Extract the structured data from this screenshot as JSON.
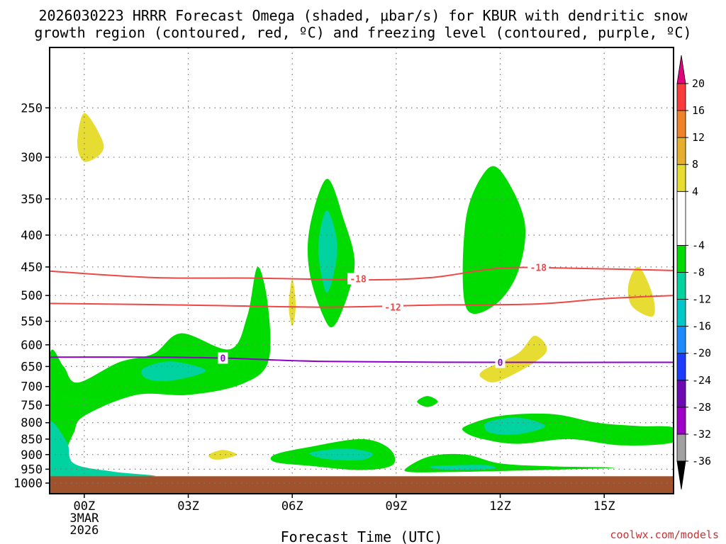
{
  "title_line1": "2026030223 HRRR Forecast Omega (shaded, μbar/s) for KBUR with dendritic snow",
  "title_line2": "growth region (contoured, red, ºC) and freezing level (contoured, purple, ºC)",
  "credit": "coolwx.com/models",
  "chart_data": {
    "type": "contour-cross-section",
    "xlabel": "Forecast Time (UTC)",
    "ylabel": "",
    "x_range_hours": [
      -1,
      17
    ],
    "y_range_hpa": [
      200,
      1040
    ],
    "x_ticks": [
      {
        "hour": 0,
        "label": "00Z"
      },
      {
        "hour": 3,
        "label": "03Z"
      },
      {
        "hour": 6,
        "label": "06Z"
      },
      {
        "hour": 9,
        "label": "09Z"
      },
      {
        "hour": 12,
        "label": "12Z"
      },
      {
        "hour": 15,
        "label": "15Z"
      }
    ],
    "date_label": [
      "3MAR",
      "2026"
    ],
    "y_ticks": [
      250,
      300,
      350,
      400,
      450,
      500,
      550,
      600,
      650,
      700,
      750,
      800,
      850,
      900,
      950,
      1000
    ],
    "surface_hpa": 975,
    "colorbar": {
      "unit": "μbar/s",
      "segments": [
        {
          "from": -40,
          "to": -36,
          "color": "#000000"
        },
        {
          "from": -36,
          "to": -32,
          "color": "#a0a0a0"
        },
        {
          "from": -32,
          "to": -28,
          "color": "#a000c8"
        },
        {
          "from": -28,
          "to": -24,
          "color": "#6e0ab4"
        },
        {
          "from": -24,
          "to": -20,
          "color": "#1e3cff"
        },
        {
          "from": -20,
          "to": -16,
          "color": "#1e8cff"
        },
        {
          "from": -16,
          "to": -12,
          "color": "#00c8c8"
        },
        {
          "from": -12,
          "to": -8,
          "color": "#00d2a0"
        },
        {
          "from": -8,
          "to": -4,
          "color": "#00dc00"
        },
        {
          "from": -4,
          "to": 4,
          "color": "#ffffff"
        },
        {
          "from": 4,
          "to": 8,
          "color": "#e6dc32"
        },
        {
          "from": 8,
          "to": 12,
          "color": "#e6af2d"
        },
        {
          "from": 12,
          "to": 16,
          "color": "#f08228"
        },
        {
          "from": 16,
          "to": 20,
          "color": "#fa3c3c"
        },
        {
          "from": 20,
          "to": 24,
          "color": "#e1057d"
        }
      ],
      "labels": [
        20,
        16,
        12,
        8,
        4,
        -4,
        -8,
        -12,
        -16,
        -20,
        -24,
        -28,
        -32,
        -36
      ]
    },
    "isotherms": [
      {
        "name": "minus-18-isotherm",
        "label": "-18",
        "color": "#f04646",
        "points": [
          [
            -1,
            457
          ],
          [
            2,
            468
          ],
          [
            5,
            469
          ],
          [
            8,
            472
          ],
          [
            10,
            468
          ],
          [
            12,
            452
          ],
          [
            14,
            452
          ],
          [
            17,
            456
          ]
        ],
        "label_positions": [
          [
            7.9,
            470
          ],
          [
            13.1,
            451
          ]
        ]
      },
      {
        "name": "minus-12-isotherm",
        "label": "-12",
        "color": "#f04646",
        "points": [
          [
            -1,
            515
          ],
          [
            3,
            518
          ],
          [
            7,
            522
          ],
          [
            10,
            518
          ],
          [
            13,
            516
          ],
          [
            15,
            506
          ],
          [
            17,
            500
          ]
        ],
        "label_positions": [
          [
            8.9,
            522
          ]
        ]
      },
      {
        "name": "zero-isotherm",
        "label": "0",
        "color": "#8c00c8",
        "points": [
          [
            -1,
            628
          ],
          [
            2,
            628
          ],
          [
            4,
            630
          ],
          [
            7,
            638
          ],
          [
            12,
            640
          ],
          [
            17,
            640
          ]
        ],
        "label_positions": [
          [
            4.0,
            630
          ],
          [
            12.0,
            640
          ]
        ]
      }
    ],
    "omega_regions": [
      {
        "name": "lowlevel-upward-motion",
        "value_bin": "-4 to -8",
        "color": "#00dc00",
        "points": [
          [
            -1,
            625
          ],
          [
            -0.6,
            650
          ],
          [
            -0.2,
            690
          ],
          [
            1,
            640
          ],
          [
            2,
            620
          ],
          [
            2.8,
            575
          ],
          [
            4.2,
            610
          ],
          [
            4.7,
            540
          ],
          [
            5,
            450
          ],
          [
            5.3,
            520
          ],
          [
            5.3,
            640
          ],
          [
            4.5,
            695
          ],
          [
            3,
            722
          ],
          [
            1.5,
            722
          ],
          [
            0,
            780
          ],
          [
            -0.3,
            830
          ],
          [
            -0.5,
            880
          ],
          [
            -0.6,
            920
          ],
          [
            -0.6,
            960
          ],
          [
            -1,
            960
          ]
        ]
      },
      {
        "name": "lowlevel-upward-motion-core",
        "value_bin": "-8 to -12",
        "color": "#00d2a0",
        "points": [
          [
            1.7,
            655
          ],
          [
            2.5,
            638
          ],
          [
            3.5,
            660
          ],
          [
            2.5,
            685
          ],
          [
            1.8,
            680
          ]
        ]
      },
      {
        "name": "nearsurface-upward-motion",
        "value_bin": "-8 to -12",
        "color": "#00d2a0",
        "points": [
          [
            -1,
            800
          ],
          [
            -0.5,
            860
          ],
          [
            -0.3,
            930
          ],
          [
            0.8,
            958
          ],
          [
            2,
            975
          ],
          [
            -1,
            975
          ]
        ]
      },
      {
        "name": "midlevel-upward-column-07z",
        "value_bin": "-4 to -8",
        "color": "#00dc00",
        "points": [
          [
            7,
            325
          ],
          [
            7.5,
            380
          ],
          [
            7.8,
            440
          ],
          [
            7.6,
            500
          ],
          [
            7.2,
            560
          ],
          [
            6.9,
            540
          ],
          [
            6.5,
            460
          ],
          [
            6.5,
            390
          ]
        ]
      },
      {
        "name": "midlevel-upward-column-07z-core",
        "value_bin": "-8 to -12",
        "color": "#00d2a0",
        "points": [
          [
            7,
            365
          ],
          [
            7.3,
            420
          ],
          [
            7,
            495
          ],
          [
            6.75,
            420
          ]
        ]
      },
      {
        "name": "lowlevel-upward-motion-08z",
        "value_bin": "-4 to -8",
        "color": "#00dc00",
        "points": [
          [
            5.5,
            900
          ],
          [
            6.5,
            875
          ],
          [
            8,
            850
          ],
          [
            8.8,
            880
          ],
          [
            8.9,
            935
          ],
          [
            8,
            953
          ],
          [
            6.5,
            938
          ],
          [
            5.5,
            925
          ]
        ]
      },
      {
        "name": "lowlevel-upward-motion-08z-core",
        "value_bin": "-8 to -12",
        "color": "#00d2a0",
        "points": [
          [
            6.5,
            895
          ],
          [
            7.5,
            880
          ],
          [
            8.3,
            895
          ],
          [
            8,
            918
          ],
          [
            7,
            915
          ]
        ]
      },
      {
        "name": "nearsurface-upward-motion-11z",
        "value_bin": "-4 to -8",
        "color": "#00dc00",
        "points": [
          [
            9.3,
            945
          ],
          [
            10,
            905
          ],
          [
            11,
            900
          ],
          [
            12,
            930
          ],
          [
            13.5,
            940
          ],
          [
            15.3,
            945
          ],
          [
            12.5,
            955
          ],
          [
            10.5,
            960
          ],
          [
            9.4,
            960
          ]
        ]
      },
      {
        "name": "nearsurface-upward-motion-11z-core",
        "value_bin": "-8 to -12",
        "color": "#00d2a0",
        "points": [
          [
            10,
            940
          ],
          [
            11.5,
            935
          ],
          [
            11.8,
            948
          ],
          [
            10.5,
            952
          ]
        ]
      },
      {
        "name": "midlevel-upward-column-12z",
        "value_bin": "-4 to -8",
        "color": "#00dc00",
        "points": [
          [
            12,
            315
          ],
          [
            12.7,
            380
          ],
          [
            12.5,
            460
          ],
          [
            11.8,
            520
          ],
          [
            11,
            520
          ],
          [
            11,
            380
          ],
          [
            11.5,
            320
          ]
        ]
      },
      {
        "name": "lowlevel-upward-motion-13z",
        "value_bin": "-4 to -8",
        "color": "#00dc00",
        "points": [
          [
            11,
            810
          ],
          [
            12,
            780
          ],
          [
            13.5,
            775
          ],
          [
            14.8,
            800
          ],
          [
            16,
            810
          ],
          [
            17,
            815
          ],
          [
            17,
            860
          ],
          [
            15.5,
            870
          ],
          [
            14,
            850
          ],
          [
            12.5,
            865
          ],
          [
            11.5,
            850
          ],
          [
            11,
            830
          ]
        ]
      },
      {
        "name": "lowlevel-upward-motion-13z-core",
        "value_bin": "-8 to -12",
        "color": "#00d2a0",
        "points": [
          [
            11.6,
            800
          ],
          [
            12.5,
            785
          ],
          [
            13.3,
            810
          ],
          [
            12.5,
            835
          ],
          [
            11.7,
            830
          ]
        ]
      },
      {
        "name": "small-upward-cell-10z",
        "value_bin": "-4 to -8",
        "color": "#00dc00",
        "points": [
          [
            9.9,
            725
          ],
          [
            10.2,
            740
          ],
          [
            9.9,
            755
          ],
          [
            9.6,
            740
          ]
        ]
      },
      {
        "name": "weak-downward-cell-00z-300mb",
        "value_bin": "4 to 8",
        "color": "#e6dc32",
        "points": [
          [
            0,
            255
          ],
          [
            0.5,
            280
          ],
          [
            0.5,
            295
          ],
          [
            0,
            305
          ],
          [
            -0.2,
            285
          ]
        ]
      },
      {
        "name": "weak-downward-cell-06z",
        "value_bin": "4 to 8",
        "color": "#e6dc32",
        "points": [
          [
            6,
            470
          ],
          [
            6.1,
            520
          ],
          [
            6,
            560
          ],
          [
            5.9,
            520
          ]
        ]
      },
      {
        "name": "weak-downward-cell-04z",
        "value_bin": "4 to 8",
        "color": "#e6dc32",
        "points": [
          [
            3.6,
            900
          ],
          [
            4,
            885
          ],
          [
            4.4,
            900
          ],
          [
            4,
            915
          ],
          [
            3.7,
            915
          ]
        ]
      },
      {
        "name": "weak-downward-cell-12z",
        "value_bin": "4 to 8",
        "color": "#e6dc32",
        "points": [
          [
            11.5,
            660
          ],
          [
            12.5,
            620
          ],
          [
            13,
            580
          ],
          [
            13.3,
            620
          ],
          [
            12,
            685
          ],
          [
            11.5,
            680
          ]
        ]
      },
      {
        "name": "weak-downward-cell-16z",
        "value_bin": "4 to 8",
        "color": "#e6dc32",
        "points": [
          [
            16,
            450
          ],
          [
            16.4,
            500
          ],
          [
            16.4,
            540
          ],
          [
            15.8,
            520
          ],
          [
            15.7,
            480
          ]
        ]
      }
    ]
  }
}
